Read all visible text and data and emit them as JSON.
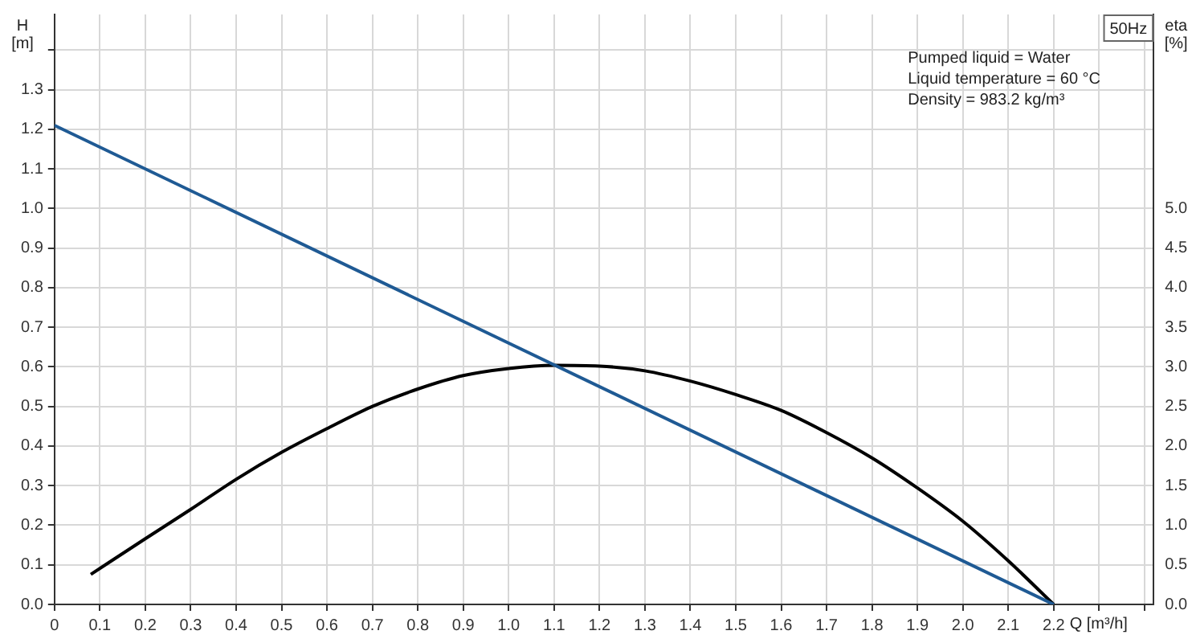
{
  "chart_data": {
    "type": "line",
    "title": "50Hz",
    "xlabel": "Q [m³/h]",
    "ylabel": "H [m]",
    "y2label": "eta [%]",
    "annotations": [
      "Pumped liquid = Water",
      "Liquid temperature = 60 °C",
      "Density = 983.2 kg/m³"
    ],
    "xlim": [
      0,
      2.42
    ],
    "xticks": [
      0,
      0.1,
      0.2,
      0.3,
      0.4,
      0.5,
      0.6,
      0.7,
      0.8,
      0.9,
      {
        "value": 1,
        "label": "1.0"
      },
      1.1,
      1.2,
      1.3,
      1.4,
      1.5,
      1.6,
      1.7,
      1.8,
      1.9,
      {
        "value": 2,
        "label": "2.0"
      },
      2.1,
      2.2,
      {
        "value": 2.3,
        "label": null
      },
      {
        "value": 2.4,
        "label": null
      }
    ],
    "ylim": [
      0,
      1.49
    ],
    "yticks": [
      {
        "value": 0,
        "label": "0.0"
      },
      0.1,
      0.2,
      0.3,
      0.4,
      0.5,
      0.6,
      0.7,
      0.8,
      0.9,
      {
        "value": 1,
        "label": "1.0"
      },
      1.1,
      1.2,
      1.3,
      {
        "value": 1.4,
        "label": null
      }
    ],
    "y2lim": [
      0,
      7.45
    ],
    "y2ticks": [
      {
        "value": 0,
        "label": "0.0"
      },
      0.5,
      {
        "value": 1,
        "label": "1.0"
      },
      1.5,
      {
        "value": 2,
        "label": "2.0"
      },
      2.5,
      {
        "value": 3,
        "label": "3.0"
      },
      3.5,
      {
        "value": 4,
        "label": "4.0"
      },
      4.5,
      {
        "value": 5,
        "label": "5.0"
      }
    ],
    "grid": true,
    "marker": "none",
    "line_style": "solid",
    "series": [
      {
        "color": "#1f5a94",
        "x": [
          0,
          2.2
        ],
        "values": [
          1.21,
          0
        ]
      },
      {
        "color": "#000000",
        "axis": "y2",
        "x": [
          0.08,
          0.2,
          0.3,
          0.4,
          0.5,
          0.6,
          0.7,
          0.8,
          0.9,
          1.0,
          1.1,
          1.2,
          1.3,
          1.4,
          1.5,
          1.6,
          1.7,
          1.8,
          1.9,
          2.0,
          2.1,
          2.2
        ],
        "values": [
          0.38,
          0.83,
          1.2,
          1.58,
          1.92,
          2.22,
          2.5,
          2.72,
          2.89,
          2.98,
          3.02,
          3.01,
          2.95,
          2.82,
          2.65,
          2.45,
          2.17,
          1.85,
          1.47,
          1.05,
          0.55,
          0
        ]
      }
    ]
  }
}
